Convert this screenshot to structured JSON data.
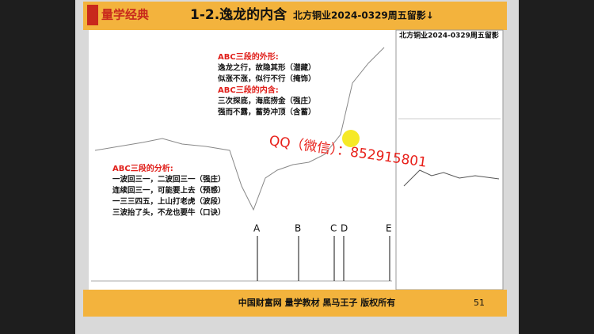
{
  "header": {
    "logo": "量学经典",
    "title": "1-2.逸龙的内含",
    "subtitle": "北方铜业2024-0329周五留影↓"
  },
  "panel": {
    "title": "北方铜业2024-0329周五留影"
  },
  "notes": {
    "shape_title": "ABC三段的外形:",
    "shape_lines": [
      "逸龙之行，故隐其形（潜藏）",
      "似涨不涨，似行不行（掩饰）"
    ],
    "inner_title": "ABC三段的内含:",
    "inner_lines": [
      "三次探底，海底捞金（强庄）",
      "强而不露，蓄势冲顶（含蓄）"
    ],
    "analysis_title": "ABC三段的分析:",
    "analysis_lines": [
      "一波回三一，二波回三一（强庄）",
      "连续回三一，可能要上去（预感）",
      "一三三四五，上山打老虎（波段）",
      "三波抬了头，不龙也要牛（口诀）"
    ]
  },
  "markers": [
    "A",
    "B",
    "C",
    "D",
    "E"
  ],
  "watermark": "QQ（微信）：852915801",
  "footer": {
    "text": "中国财富网 量学教材 黑马王子 版权所有",
    "page": "51"
  }
}
